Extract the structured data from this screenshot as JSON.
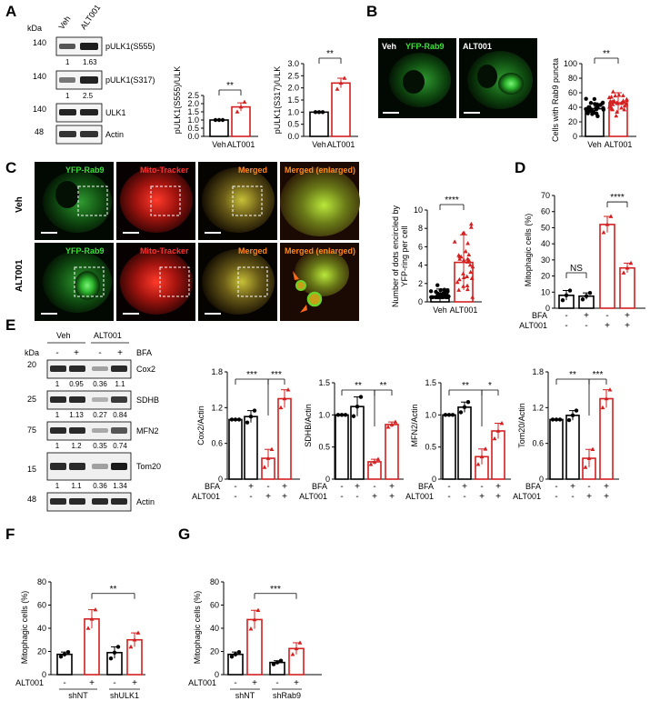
{
  "panels": {
    "A": {
      "letter": "A",
      "kda": "kDa",
      "lanes": [
        "Veh",
        "ALT001"
      ],
      "blots": [
        {
          "mw": "140",
          "label": "pULK1(S555)",
          "nums": [
            "1",
            "1.63"
          ]
        },
        {
          "mw": "140",
          "label": "pULK1(S317)",
          "nums": [
            "1",
            "2.5"
          ]
        },
        {
          "mw": "140",
          "label": "ULK1",
          "nums": []
        },
        {
          "mw": "48",
          "label": "Actin",
          "nums": []
        }
      ]
    },
    "B": {
      "letter": "B",
      "img_labels": [
        "Veh",
        "YFP-Rab9",
        "ALT001"
      ]
    },
    "C": {
      "letter": "C",
      "row_labels": [
        "Veh",
        "ALT001"
      ],
      "col_labels": [
        "YFP-Rab9",
        "Mito-Tracker",
        "Merged",
        "Merged (enlarged)"
      ]
    },
    "D": {
      "letter": "D",
      "bfa": "BFA",
      "alt": "ALT001"
    },
    "E": {
      "letter": "E",
      "kda": "kDa",
      "groups": [
        "Veh",
        "ALT001"
      ],
      "bfa": "BFA",
      "signs": [
        "-",
        "+",
        "-",
        "+"
      ],
      "blots": [
        {
          "mw": "20",
          "label": "Cox2",
          "nums": [
            "1",
            "0.95",
            "0.36",
            "1.1"
          ]
        },
        {
          "mw": "25",
          "label": "SDHB",
          "nums": [
            "1",
            "1.13",
            "0.27",
            "0.84"
          ]
        },
        {
          "mw": "75",
          "label": "MFN2",
          "nums": [
            "1",
            "1.2",
            "0.35",
            "0.74"
          ]
        },
        {
          "mw": "15",
          "label": "Tom20",
          "nums": [
            "1",
            "1.1",
            "0.36",
            "1.34"
          ]
        },
        {
          "mw": "48",
          "label": "Actin",
          "nums": []
        }
      ]
    },
    "F": {
      "letter": "F"
    },
    "G": {
      "letter": "G"
    }
  },
  "colors": {
    "control": "#000000",
    "treated": "#d42020",
    "rab9_green": "#39d13a",
    "mito_red": "#e0201c"
  },
  "chart_data": [
    {
      "id": "A1",
      "type": "bar",
      "ylabel": "pULK1(S555)/ULK",
      "categories": [
        "Veh",
        "ALT001"
      ],
      "values": [
        1.0,
        1.8
      ],
      "errors": [
        0.02,
        0.25
      ],
      "points": [
        [
          1,
          1,
          1
        ],
        [
          1.5,
          1.8,
          2.1
        ]
      ],
      "ylim": [
        0,
        2.5
      ],
      "yticks": [
        "0.0",
        "0.5",
        "1.0",
        "1.5",
        "2.0",
        "2.5"
      ],
      "sig": [
        {
          "label": "**",
          "from": 0,
          "to": 1
        }
      ]
    },
    {
      "id": "A2",
      "type": "bar",
      "ylabel": "pULK1(S317)/ULK",
      "categories": [
        "Veh",
        "ALT001"
      ],
      "values": [
        1.0,
        2.2
      ],
      "errors": [
        0.02,
        0.2
      ],
      "points": [
        [
          1,
          1,
          1
        ],
        [
          1.95,
          2.2,
          2.4
        ]
      ],
      "ylim": [
        0,
        3.0
      ],
      "yticks": [
        "0.0",
        "0.5",
        "1.0",
        "1.5",
        "2.0",
        "2.5",
        "3.0"
      ],
      "sig": [
        {
          "label": "**",
          "from": 0,
          "to": 1
        }
      ]
    },
    {
      "id": "B",
      "type": "bar",
      "ylabel": "Cells with Rab9 puncta",
      "categories": [
        "Veh",
        "ALT001"
      ],
      "values": [
        38,
        46
      ],
      "errors": [
        8,
        14
      ],
      "ylim": [
        0,
        100
      ],
      "yticks": [
        "0",
        "20",
        "40",
        "60",
        "80",
        "100"
      ],
      "sig": [
        {
          "label": "**",
          "from": 0,
          "to": 1
        }
      ]
    },
    {
      "id": "C",
      "type": "bar",
      "ylabel": "Number of dots encircled by YFP-ring per cell",
      "categories": [
        "Veh",
        "ALT001"
      ],
      "values": [
        0.6,
        4.3
      ],
      "errors": [
        0.8,
        3.0
      ],
      "ylim": [
        0,
        10
      ],
      "yticks": [
        "0",
        "2",
        "4",
        "6",
        "8",
        "10"
      ],
      "sig": [
        {
          "label": "****",
          "from": 0,
          "to": 1
        }
      ]
    },
    {
      "id": "D",
      "type": "bar",
      "ylabel": "Mitophagic cells (%)",
      "categories": [
        "1",
        "2",
        "3",
        "4"
      ],
      "bfa": [
        "-",
        "+",
        "-",
        "+"
      ],
      "alt": [
        "-",
        "-",
        "+",
        "+"
      ],
      "values": [
        8,
        7.5,
        52,
        25
      ],
      "errors": [
        3,
        2,
        5,
        3
      ],
      "points": [
        [
          5,
          8,
          11
        ],
        [
          5.5,
          7.5,
          9.5
        ],
        [
          47,
          52,
          57
        ],
        [
          22,
          25,
          28
        ]
      ],
      "ylim": [
        0,
        70
      ],
      "yticks": [
        "0",
        "10",
        "20",
        "30",
        "40",
        "50",
        "60",
        "70"
      ],
      "sig": [
        {
          "label": "NS",
          "from": 0,
          "to": 1
        },
        {
          "label": "****",
          "from": 2,
          "to": 3
        }
      ]
    },
    {
      "id": "E1",
      "type": "bar",
      "ylabel": "Cox2/Actin",
      "bfa": [
        "-",
        "+",
        "-",
        "+"
      ],
      "alt": [
        "-",
        "-",
        "+",
        "+"
      ],
      "values": [
        1.0,
        1.05,
        0.35,
        1.35
      ],
      "errors": [
        0,
        0.1,
        0.15,
        0.15
      ],
      "points": [
        [
          1,
          1,
          1
        ],
        [
          0.95,
          1.05,
          1.15
        ],
        [
          0.2,
          0.35,
          0.5
        ],
        [
          1.2,
          1.35,
          1.5
        ]
      ],
      "ylim": [
        0,
        1.8
      ],
      "yticks": [
        "0",
        "0.6",
        "1.2",
        "1.8"
      ],
      "sig": [
        {
          "label": "***",
          "from": 0,
          "to": 2
        },
        {
          "label": "***",
          "from": 2,
          "to": 3
        }
      ]
    },
    {
      "id": "E2",
      "type": "bar",
      "ylabel": "SDHB/Actin",
      "bfa": [
        "-",
        "+",
        "-",
        "+"
      ],
      "alt": [
        "-",
        "-",
        "+",
        "+"
      ],
      "values": [
        1.0,
        1.13,
        0.27,
        0.85
      ],
      "errors": [
        0,
        0.15,
        0.04,
        0.04
      ],
      "points": [
        [
          1,
          1,
          1
        ],
        [
          0.98,
          1.13,
          1.28
        ],
        [
          0.23,
          0.27,
          0.31
        ],
        [
          0.81,
          0.85,
          0.89
        ]
      ],
      "ylim": [
        0,
        1.5
      ],
      "yticks": [
        "0",
        "0.5",
        "1.0",
        "1.5"
      ],
      "sig": [
        {
          "label": "**",
          "from": 0,
          "to": 2
        },
        {
          "label": "**",
          "from": 2,
          "to": 3
        }
      ]
    },
    {
      "id": "E3",
      "type": "bar",
      "ylabel": "MFN2/Actin",
      "bfa": [
        "-",
        "+",
        "-",
        "+"
      ],
      "alt": [
        "-",
        "-",
        "+",
        "+"
      ],
      "values": [
        1.0,
        1.12,
        0.35,
        0.75
      ],
      "errors": [
        0,
        0.08,
        0.12,
        0.12
      ],
      "points": [
        [
          1,
          1,
          1
        ],
        [
          1.04,
          1.12,
          1.2
        ],
        [
          0.23,
          0.35,
          0.47
        ],
        [
          0.63,
          0.75,
          0.87
        ]
      ],
      "ylim": [
        0,
        1.5
      ],
      "yticks": [
        "0",
        "0.5",
        "1.0",
        "1.5"
      ],
      "sig": [
        {
          "label": "**",
          "from": 0,
          "to": 2
        },
        {
          "label": "*",
          "from": 2,
          "to": 3
        }
      ]
    },
    {
      "id": "E4",
      "type": "bar",
      "ylabel": "Tom20/Actin",
      "bfa": [
        "-",
        "+",
        "-",
        "+"
      ],
      "alt": [
        "-",
        "-",
        "+",
        "+"
      ],
      "values": [
        1.0,
        1.07,
        0.35,
        1.35
      ],
      "errors": [
        0,
        0.08,
        0.15,
        0.15
      ],
      "points": [
        [
          1,
          1,
          1
        ],
        [
          0.99,
          1.07,
          1.15
        ],
        [
          0.2,
          0.35,
          0.5
        ],
        [
          1.2,
          1.35,
          1.5
        ]
      ],
      "ylim": [
        0,
        1.8
      ],
      "yticks": [
        "0",
        "0.6",
        "1.2",
        "1.8"
      ],
      "sig": [
        {
          "label": "**",
          "from": 0,
          "to": 2
        },
        {
          "label": "***",
          "from": 2,
          "to": 3
        }
      ]
    },
    {
      "id": "F",
      "type": "bar",
      "ylabel": "Mitophagic cells (%)",
      "alt": [
        "-",
        "+",
        "-",
        "+"
      ],
      "alt_label": "ALT001",
      "groups": [
        "shNT",
        "shULK1"
      ],
      "values": [
        17.5,
        48,
        19,
        30
      ],
      "errors": [
        2,
        8,
        5,
        6
      ],
      "points": [
        [
          15.5,
          17.5,
          19.5
        ],
        [
          40,
          48,
          56
        ],
        [
          14,
          19,
          24
        ],
        [
          24,
          30,
          36
        ]
      ],
      "ylim": [
        0,
        80
      ],
      "yticks": [
        "0",
        "20",
        "40",
        "60",
        "80"
      ],
      "sig": [
        {
          "label": "**",
          "from": 1,
          "to": 3
        }
      ]
    },
    {
      "id": "G",
      "type": "bar",
      "ylabel": "Mitophagic cells (%)",
      "alt": [
        "-",
        "+",
        "-",
        "+"
      ],
      "alt_label": "ALT001",
      "groups": [
        "shNT",
        "shRab9"
      ],
      "values": [
        17.5,
        47.5,
        10.5,
        22.5
      ],
      "errors": [
        2,
        8,
        1.5,
        5
      ],
      "points": [
        [
          15.5,
          17.5,
          19.5
        ],
        [
          39.5,
          47.5,
          55.5
        ],
        [
          9,
          10.5,
          12
        ],
        [
          17.5,
          22.5,
          27.5
        ]
      ],
      "ylim": [
        0,
        80
      ],
      "yticks": [
        "0",
        "20",
        "40",
        "60",
        "80"
      ],
      "sig": [
        {
          "label": "***",
          "from": 1,
          "to": 3
        }
      ]
    }
  ]
}
